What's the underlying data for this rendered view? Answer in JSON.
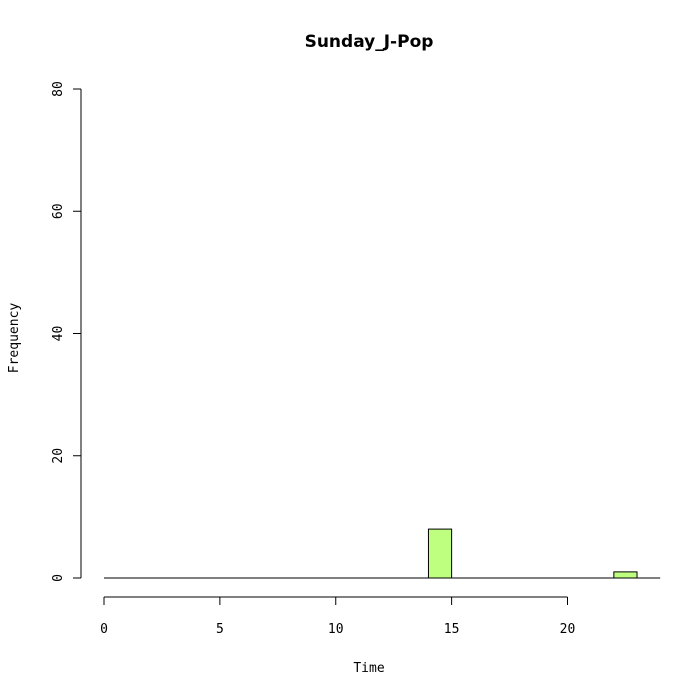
{
  "chart_data": {
    "type": "bar",
    "title": "Sunday_J-Pop",
    "xlabel": "Time",
    "ylabel": "Frequency",
    "xlim": [
      0,
      24
    ],
    "ylim": [
      0,
      80
    ],
    "x_ticks": [
      "0",
      "5",
      "10",
      "15",
      "20"
    ],
    "y_ticks": [
      "0",
      "20",
      "40",
      "60",
      "80"
    ],
    "bin_width": 1,
    "bins": [
      {
        "start": 0,
        "end": 1,
        "count": 0
      },
      {
        "start": 1,
        "end": 2,
        "count": 0
      },
      {
        "start": 2,
        "end": 3,
        "count": 0
      },
      {
        "start": 3,
        "end": 4,
        "count": 0
      },
      {
        "start": 4,
        "end": 5,
        "count": 0
      },
      {
        "start": 5,
        "end": 6,
        "count": 0
      },
      {
        "start": 6,
        "end": 7,
        "count": 0
      },
      {
        "start": 7,
        "end": 8,
        "count": 0
      },
      {
        "start": 8,
        "end": 9,
        "count": 0
      },
      {
        "start": 9,
        "end": 10,
        "count": 0
      },
      {
        "start": 10,
        "end": 11,
        "count": 0
      },
      {
        "start": 11,
        "end": 12,
        "count": 0
      },
      {
        "start": 12,
        "end": 13,
        "count": 0
      },
      {
        "start": 13,
        "end": 14,
        "count": 0
      },
      {
        "start": 14,
        "end": 15,
        "count": 8
      },
      {
        "start": 15,
        "end": 16,
        "count": 0
      },
      {
        "start": 16,
        "end": 17,
        "count": 0
      },
      {
        "start": 17,
        "end": 18,
        "count": 0
      },
      {
        "start": 18,
        "end": 19,
        "count": 0
      },
      {
        "start": 19,
        "end": 20,
        "count": 0
      },
      {
        "start": 20,
        "end": 21,
        "count": 0
      },
      {
        "start": 21,
        "end": 22,
        "count": 0
      },
      {
        "start": 22,
        "end": 23,
        "count": 1
      },
      {
        "start": 23,
        "end": 24,
        "count": 0
      }
    ],
    "bar_color": "#bfff80",
    "grid": false,
    "legend": "none"
  }
}
